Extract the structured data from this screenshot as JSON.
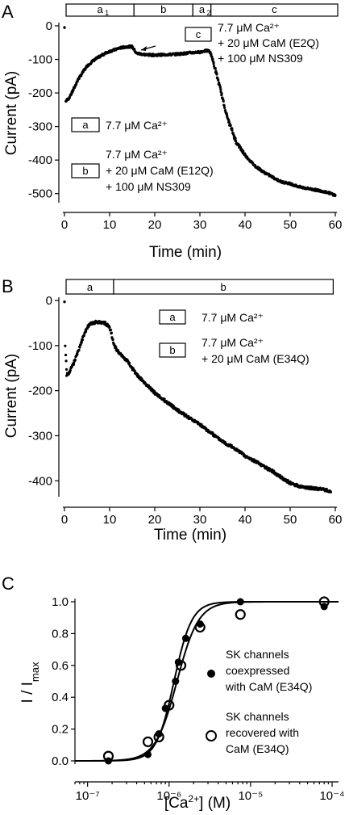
{
  "chart_data": [
    {
      "panel": "A",
      "type": "scatter",
      "xlabel": "Time (min)",
      "ylabel": "Current (pA)",
      "xlim": [
        0,
        60
      ],
      "ylim": [
        -520,
        0
      ],
      "x_ticks": [
        0,
        10,
        20,
        30,
        40,
        50,
        60
      ],
      "y_ticks": [
        0,
        -100,
        -200,
        -300,
        -400,
        -500
      ],
      "x_tick_labels": [
        "0",
        "10",
        "20",
        "30",
        "40",
        "50",
        "60"
      ],
      "y_tick_labels": [
        "0",
        "-100",
        "-200",
        "-300",
        "-400",
        "-500"
      ],
      "bar_segments": [
        {
          "label": "a",
          "sub": "1",
          "from": 0,
          "to": 15
        },
        {
          "label": "b",
          "sub": "",
          "from": 15,
          "to": 28
        },
        {
          "label": "a",
          "sub": "2",
          "from": 28,
          "to": 32
        },
        {
          "label": "c",
          "sub": "",
          "from": 32,
          "to": 60
        }
      ],
      "legend": [
        {
          "key": "a",
          "lines": [
            "7.7 μM Ca²⁺"
          ]
        },
        {
          "key": "b",
          "lines": [
            "7.7 μM Ca²⁺",
            "+ 20 μM CaM (E12Q)",
            "+ 100 μM NS309"
          ]
        },
        {
          "key": "c",
          "lines": [
            "7.7 μM Ca²⁺",
            "+ 20 μM CaM (E2Q)",
            "+ 100 μM NS309"
          ]
        }
      ],
      "series": [
        {
          "x": [
            0,
            0.3,
            1,
            2,
            3,
            4,
            5,
            6,
            7,
            8,
            9,
            10,
            11,
            12,
            13,
            14,
            15,
            16,
            18,
            20,
            22,
            24,
            26,
            28,
            30,
            31,
            32,
            32.5,
            33,
            34,
            35,
            36,
            38,
            40,
            42,
            44,
            46,
            48,
            50,
            52,
            54,
            56,
            58,
            59,
            60
          ],
          "y": [
            -5,
            -225,
            -215,
            -190,
            -160,
            -140,
            -120,
            -108,
            -98,
            -90,
            -82,
            -76,
            -72,
            -67,
            -64,
            -62,
            -62,
            -82,
            -86,
            -87,
            -86,
            -85,
            -83,
            -80,
            -78,
            -75,
            -74,
            -85,
            -110,
            -160,
            -215,
            -270,
            -345,
            -385,
            -415,
            -435,
            -450,
            -465,
            -470,
            -480,
            -485,
            -490,
            -495,
            -500,
            -505
          ]
        }
      ]
    },
    {
      "panel": "B",
      "type": "scatter",
      "xlabel": "Time (min)",
      "ylabel": "Current (pA)",
      "xlim": [
        0,
        60
      ],
      "ylim": [
        -430,
        0
      ],
      "x_ticks": [
        0,
        10,
        20,
        30,
        40,
        50,
        60
      ],
      "y_ticks": [
        0,
        -100,
        -200,
        -300,
        -400
      ],
      "x_tick_labels": [
        "0",
        "10",
        "20",
        "30",
        "40",
        "50",
        "60"
      ],
      "y_tick_labels": [
        "0",
        "-100",
        "-200",
        "-300",
        "-400"
      ],
      "bar_segments": [
        {
          "label": "a",
          "sub": "",
          "from": 0,
          "to": 10.5
        },
        {
          "label": "b",
          "sub": "",
          "from": 10.5,
          "to": 59
        }
      ],
      "legend": [
        {
          "key": "a",
          "lines": [
            "7.7 μM Ca²⁺"
          ]
        },
        {
          "key": "b",
          "lines": [
            "7.7 μM Ca²⁺",
            "+ 20 μM CaM (E34Q)"
          ]
        }
      ],
      "series": [
        {
          "x": [
            0,
            0.2,
            0.5,
            1,
            2,
            3,
            4,
            5,
            6,
            7,
            8,
            9,
            10,
            11,
            12,
            14,
            16,
            18,
            20,
            22,
            24,
            26,
            28,
            30,
            32,
            34,
            36,
            38,
            40,
            42,
            44,
            46,
            48,
            50,
            52,
            54,
            56,
            58,
            59
          ],
          "y": [
            -3,
            -100,
            -165,
            -160,
            -140,
            -115,
            -85,
            -60,
            -50,
            -48,
            -48,
            -50,
            -60,
            -100,
            -115,
            -135,
            -165,
            -185,
            -205,
            -220,
            -235,
            -250,
            -262,
            -275,
            -290,
            -305,
            -318,
            -330,
            -345,
            -355,
            -368,
            -378,
            -392,
            -405,
            -412,
            -415,
            -418,
            -420,
            -425
          ]
        }
      ]
    },
    {
      "panel": "C",
      "type": "scatter",
      "xlabel": "[Ca²⁺] (M)",
      "ylabel": "I / Imax",
      "xscale": "log",
      "xlim": [
        7e-08,
        0.00012
      ],
      "ylim": [
        -0.02,
        1.02
      ],
      "x_ticks": [
        1e-07,
        1e-06,
        1e-05,
        0.0001
      ],
      "y_ticks": [
        0,
        0.2,
        0.4,
        0.6,
        0.8,
        1.0
      ],
      "x_tick_labels": [
        "10⁻⁷",
        "10⁻⁶",
        "10⁻⁵",
        "10⁻⁴"
      ],
      "y_tick_labels": [
        "0.0",
        "0.2",
        "0.4",
        "0.6",
        "0.8",
        "1.0"
      ],
      "legend": [
        {
          "marker": "filled-circle",
          "lines": [
            "SK channels",
            "coexpressed",
            "with CaM (E34Q)"
          ]
        },
        {
          "marker": "open-circle",
          "lines": [
            "SK channels",
            "recovered with",
            "CaM (E34Q)"
          ]
        }
      ],
      "series": [
        {
          "marker": "filled-circle",
          "x": [
            1.8e-07,
            5.5e-07,
            7.5e-07,
            9e-07,
            1.2e-06,
            1.3e-06,
            1.6e-06,
            2.4e-06,
            7.5e-06,
            8e-05
          ],
          "y": [
            0.0,
            0.04,
            0.17,
            0.33,
            0.5,
            0.62,
            0.77,
            0.86,
            1.0,
            0.97
          ]
        },
        {
          "marker": "open-circle",
          "x": [
            1.8e-07,
            5.5e-07,
            7.5e-07,
            1e-06,
            1.4e-06,
            2.4e-06,
            7.5e-06,
            8e-05
          ],
          "y": [
            0.03,
            0.12,
            0.15,
            0.35,
            0.6,
            0.84,
            0.92,
            1.0
          ]
        }
      ],
      "fits": [
        {
          "ec50": 1.15e-06,
          "hill": 4.0
        },
        {
          "ec50": 1.25e-06,
          "hill": 3.3
        }
      ]
    }
  ],
  "panels": {
    "A": {
      "letter": "A"
    },
    "B": {
      "letter": "B"
    },
    "C": {
      "letter": "C"
    }
  }
}
